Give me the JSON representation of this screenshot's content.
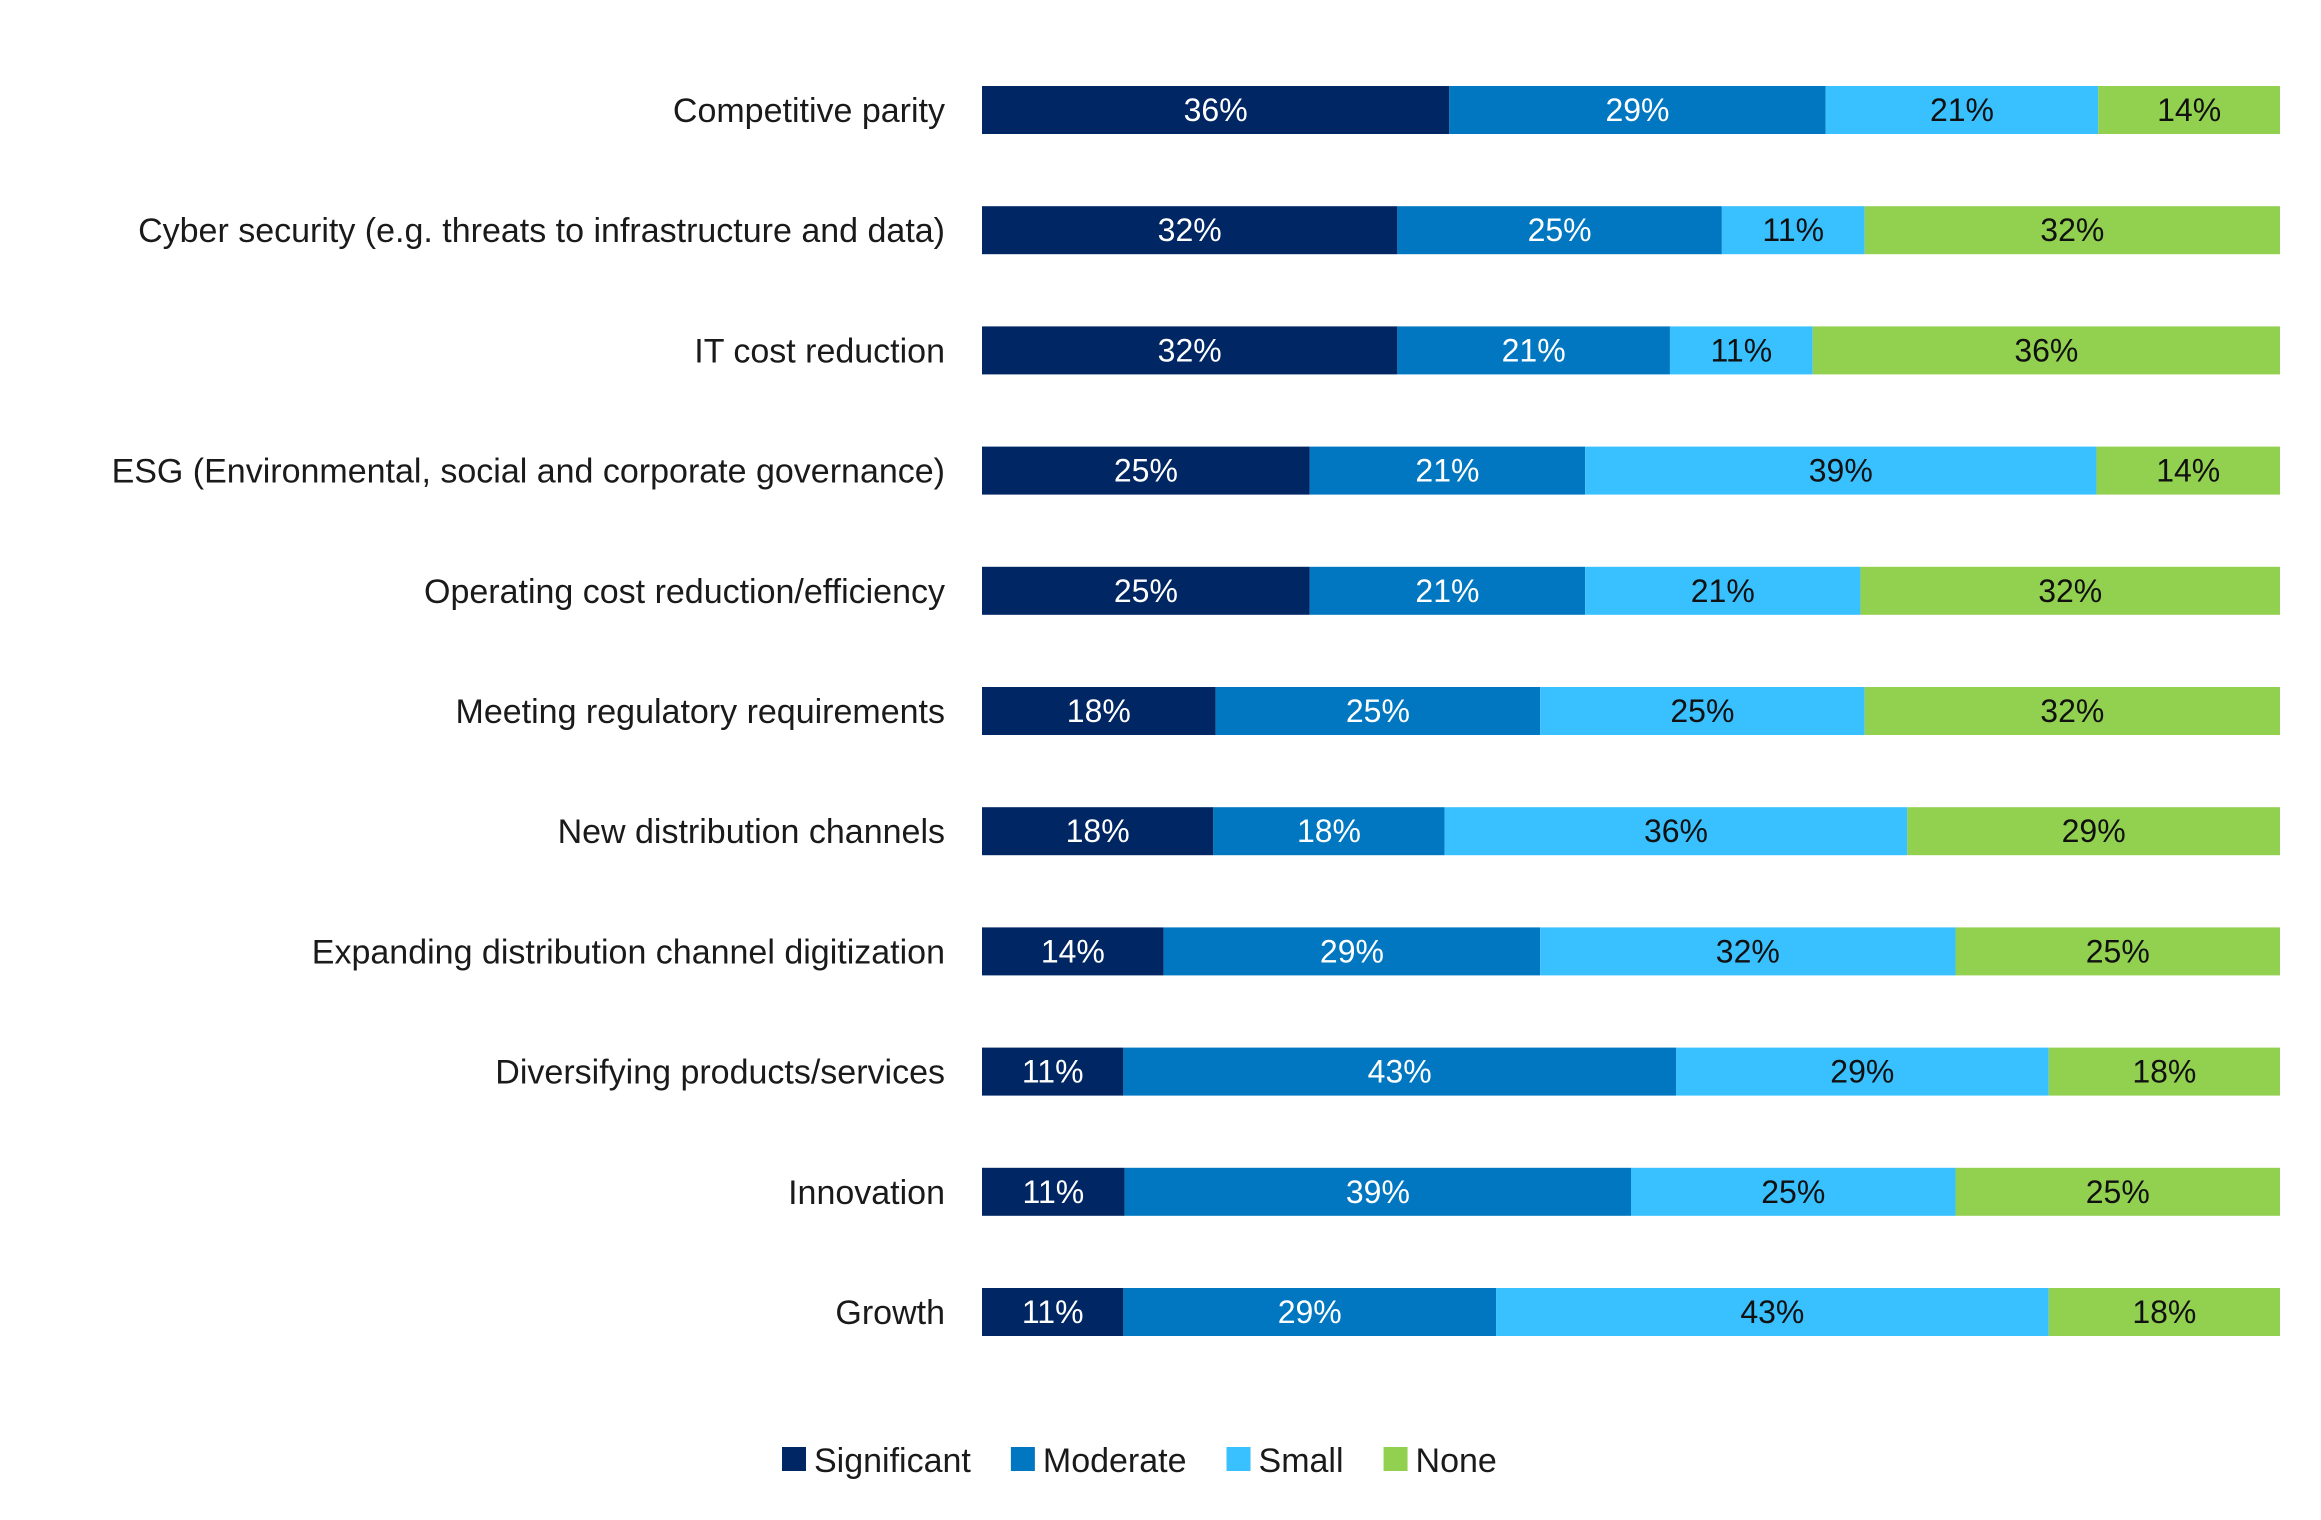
{
  "chart_data": {
    "type": "bar",
    "orientation": "horizontal",
    "stacked": true,
    "percent_stacked": true,
    "title": "",
    "xlabel": "",
    "ylabel": "",
    "grid": false,
    "legend_position": "bottom",
    "categories": [
      "Competitive parity",
      "Cyber security (e.g. threats to infrastructure and data)",
      "IT cost reduction",
      "ESG (Environmental, social and corporate governance)",
      "Operating cost reduction/efficiency",
      "Meeting regulatory requirements",
      "New distribution channels",
      "Expanding distribution channel digitization",
      "Diversifying products/services",
      "Innovation",
      "Growth"
    ],
    "series": [
      {
        "name": "Significant",
        "color": "#002663",
        "label_color": "#ffffff",
        "values": [
          36,
          32,
          32,
          25,
          25,
          18,
          18,
          14,
          11,
          11,
          11
        ]
      },
      {
        "name": "Moderate",
        "color": "#0077C0",
        "label_color": "#ffffff",
        "values": [
          29,
          25,
          21,
          21,
          21,
          25,
          18,
          29,
          43,
          39,
          29
        ]
      },
      {
        "name": "Small",
        "color": "#38C0FF",
        "label_color": "#111111",
        "values": [
          21,
          11,
          11,
          39,
          21,
          25,
          36,
          32,
          29,
          25,
          43
        ]
      },
      {
        "name": "None",
        "color": "#92D050",
        "label_color": "#111111",
        "values": [
          14,
          32,
          36,
          14,
          32,
          32,
          29,
          25,
          18,
          25,
          18
        ]
      }
    ],
    "value_suffix": "%"
  }
}
